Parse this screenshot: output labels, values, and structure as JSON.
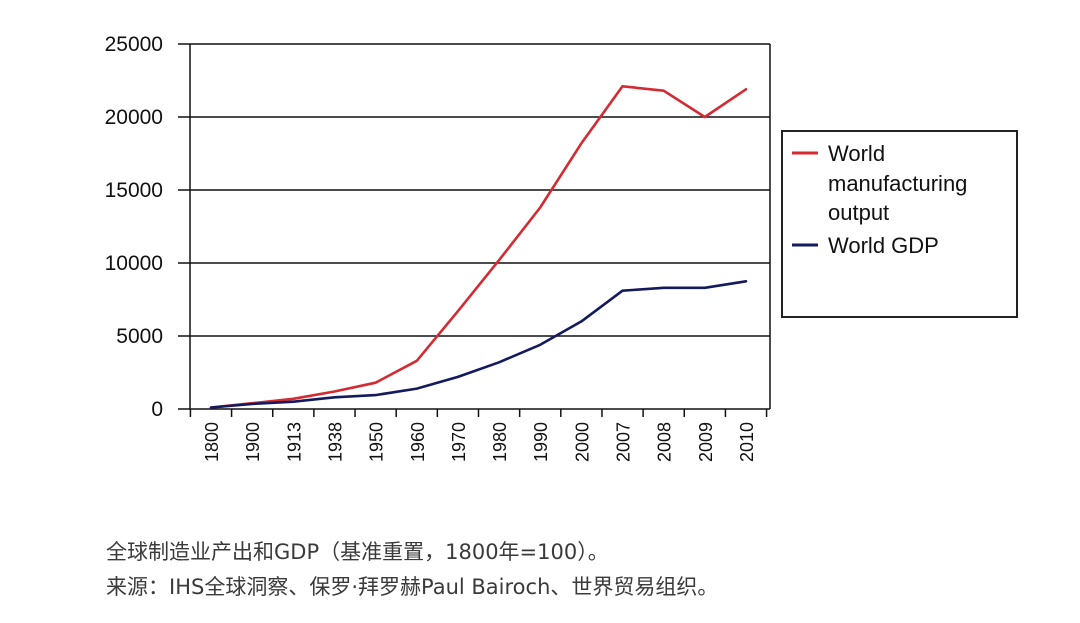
{
  "chart_data": {
    "type": "line",
    "categories": [
      "1800",
      "1900",
      "1913",
      "1938",
      "1950",
      "1960",
      "1970",
      "1980",
      "1990",
      "2000",
      "2007",
      "2008",
      "2009",
      "2010"
    ],
    "series": [
      {
        "name": "World manufacturing output",
        "name_lines": [
          "World",
          "manufacturing",
          "output"
        ],
        "color": "#d42a32",
        "values": [
          100,
          400,
          700,
          1200,
          1800,
          3300,
          6700,
          10200,
          13800,
          18200,
          22100,
          21800,
          20000,
          21900
        ]
      },
      {
        "name": "World GDP",
        "name_lines": [
          "World GDP"
        ],
        "color": "#141a5e",
        "values": [
          100,
          350,
          500,
          800,
          950,
          1400,
          2200,
          3200,
          4400,
          6000,
          8100,
          8300,
          8300,
          8750
        ]
      }
    ],
    "ylim": [
      0,
      25000
    ],
    "yticks": [
      "0",
      "5000",
      "10000",
      "15000",
      "20000",
      "25000"
    ],
    "grid": true,
    "legend_position": "right"
  },
  "caption": {
    "line1": "全球制造业产出和GDP（基准重置，1800年=100）。",
    "line2": "来源：IHS全球洞察、保罗·拜罗赫Paul Bairoch、世界贸易组织。"
  }
}
